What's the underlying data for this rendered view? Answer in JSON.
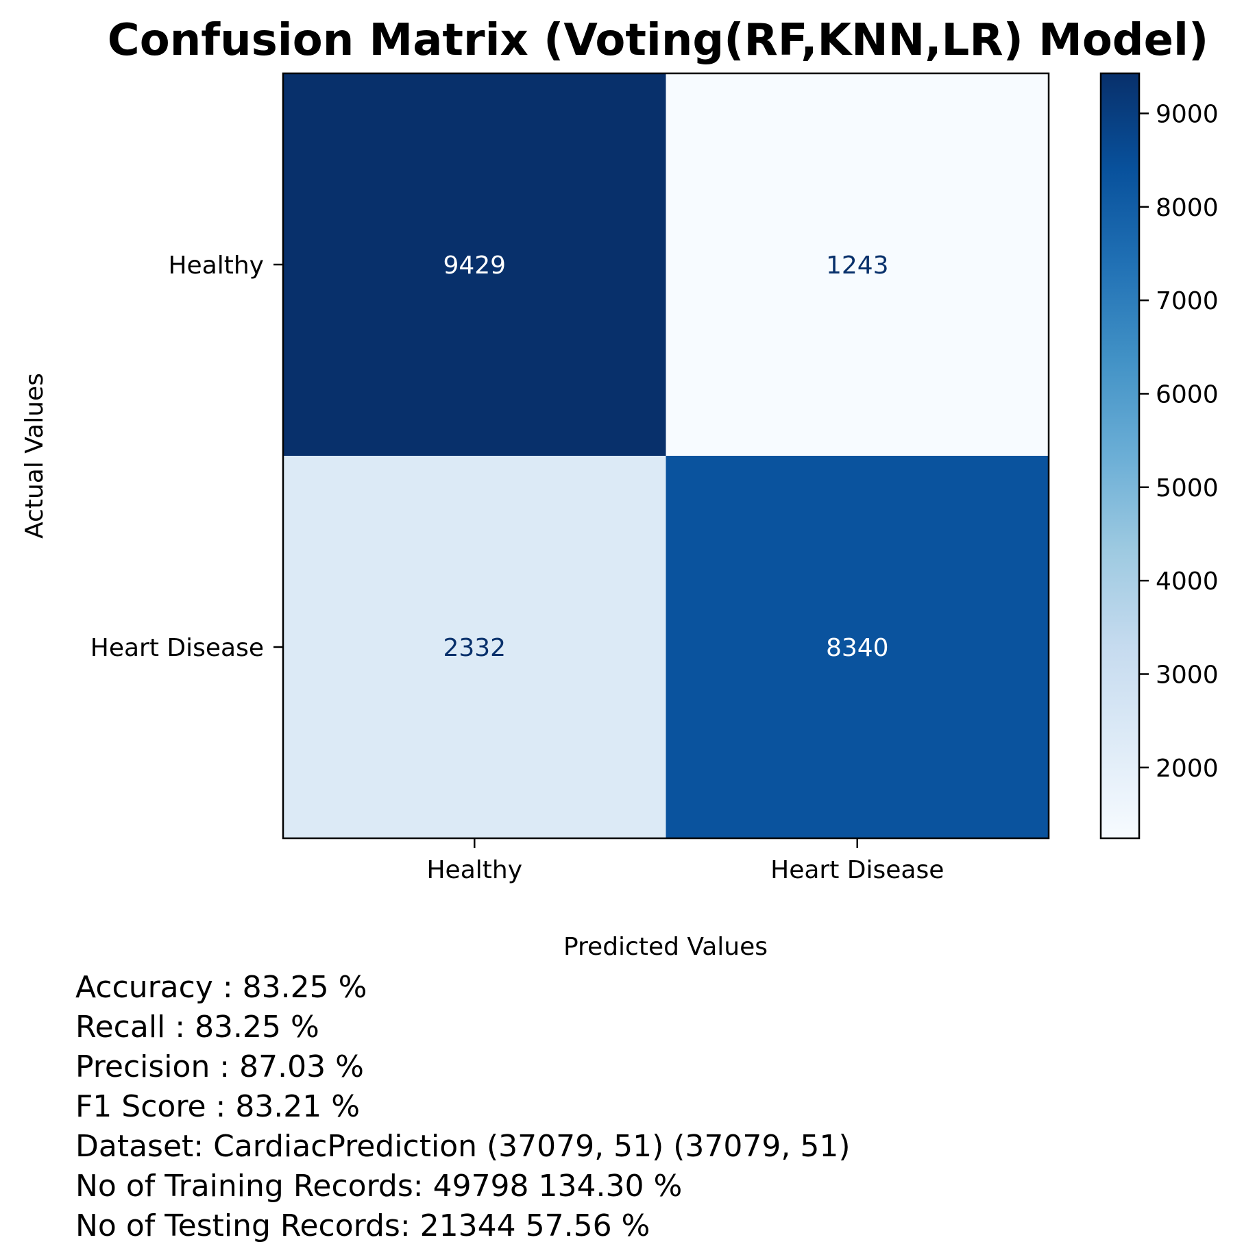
{
  "chart_data": {
    "type": "heatmap",
    "title": "Confusion Matrix (Voting(RF,KNN,LR) Model)",
    "xlabel": "Predicted Values",
    "ylabel": "Actual Values",
    "x_categories": [
      "Healthy",
      "Heart Disease"
    ],
    "y_categories": [
      "Healthy",
      "Heart Disease"
    ],
    "values": [
      [
        9429,
        1243
      ],
      [
        2332,
        8340
      ]
    ],
    "colormap": "Blues",
    "colorbar": {
      "vmin": 1243,
      "vmax": 9429,
      "ticks": [
        2000,
        3000,
        4000,
        5000,
        6000,
        7000,
        8000,
        9000
      ]
    },
    "legend": "none",
    "grid": false
  },
  "metrics": [
    "Accuracy : 83.25 %",
    "Recall : 83.25 %",
    "Precision : 87.03 %",
    "F1 Score : 83.21 %",
    "Dataset: CardiacPrediction (37079, 51) (37079, 51)",
    "No of Training Records: 49798  134.30 %",
    "No of Testing Records: 21344  57.56 %"
  ]
}
